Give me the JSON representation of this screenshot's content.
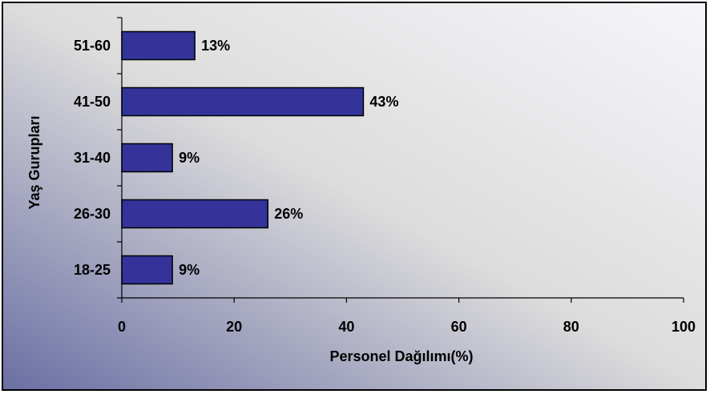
{
  "chart_data": {
    "type": "bar",
    "orientation": "horizontal",
    "title": "",
    "xlabel": "Personel Dağılımı(%)",
    "ylabel": "Yaş Gurupları",
    "categories": [
      "18-25",
      "26-30",
      "31-40",
      "41-50",
      "51-60"
    ],
    "values": [
      9,
      26,
      9,
      43,
      13
    ],
    "data_labels": [
      "9%",
      "26%",
      "9%",
      "43%",
      "13%"
    ],
    "xlim": [
      0,
      100
    ],
    "xticks": [
      0,
      20,
      40,
      60,
      80,
      100
    ],
    "xtick_labels": [
      "0",
      "20",
      "40",
      "60",
      "80",
      "100"
    ],
    "grid": false,
    "legend": "none",
    "colors": {
      "bar_fill": "#333399",
      "bar_stroke": "#000000",
      "background_gradient_start": "#6b6fa3",
      "background_gradient_mid": "#dcdcdc",
      "background_gradient_end": "#f6f6fa"
    }
  }
}
